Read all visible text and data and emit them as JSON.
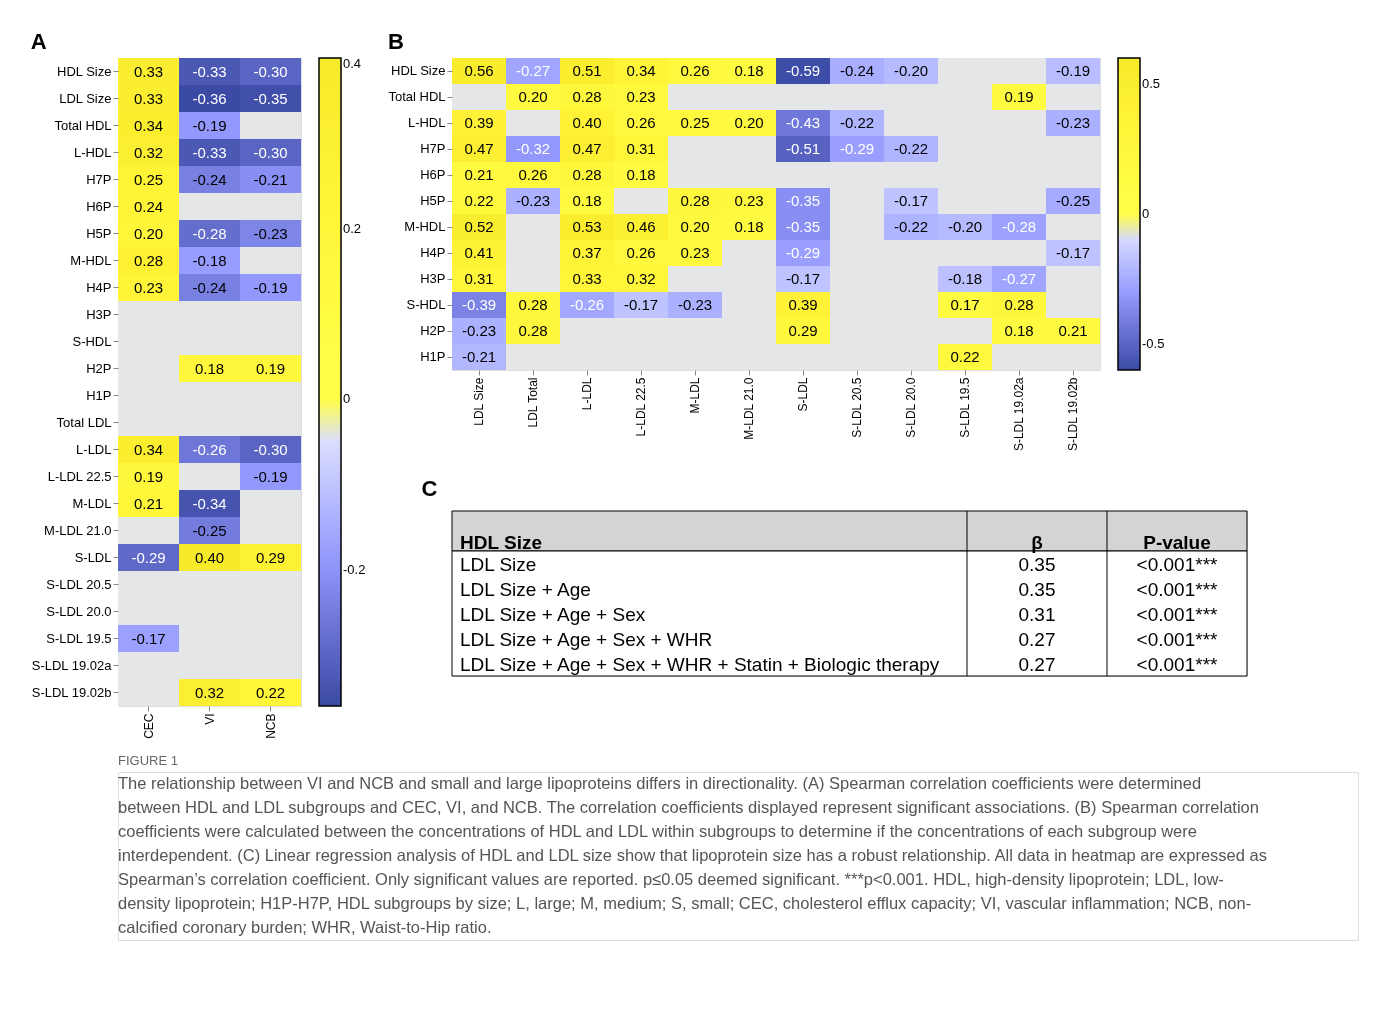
{
  "chart_data": [
    {
      "type": "heatmap",
      "title": "A",
      "clim": [
        -0.36,
        0.4
      ],
      "cticks": [
        -0.2,
        0,
        0.2,
        0.4
      ],
      "cell_labels": [
        [
          "0.33",
          "-0.33",
          "-0.30"
        ],
        [
          "0.33",
          "-0.36",
          "-0.35"
        ],
        [
          "0.34",
          "-0.19",
          null
        ],
        [
          "0.32",
          "-0.33",
          "-0.30"
        ],
        [
          "0.25",
          "-0.24",
          "-0.21"
        ],
        [
          "0.24",
          null,
          null
        ],
        [
          "0.20",
          "-0.28",
          "-0.23"
        ],
        [
          "0.28",
          "-0.18",
          null
        ],
        [
          "0.23",
          "-0.24",
          "-0.19"
        ],
        [
          null,
          null,
          null
        ],
        [
          null,
          null,
          null
        ],
        [
          null,
          "0.18",
          "0.19"
        ],
        [
          null,
          null,
          null
        ],
        [
          null,
          null,
          null
        ],
        [
          "0.34",
          "-0.26",
          "-0.30"
        ],
        [
          "0.19",
          null,
          "-0.19"
        ],
        [
          "0.21",
          "-0.34",
          null
        ],
        [
          null,
          "-0.25",
          null
        ],
        [
          "-0.29",
          "0.40",
          "0.29"
        ],
        [
          null,
          null,
          null
        ],
        [
          null,
          null,
          null
        ],
        [
          "-0.17",
          null,
          null
        ],
        [
          null,
          null,
          null
        ],
        [
          null,
          "0.32",
          "0.22"
        ]
      ],
      "categories": [
        "CEC",
        "VI",
        "NCB"
      ],
      "y_categories": [
        "HDL Size",
        "LDL Size",
        "Total HDL",
        "L-HDL",
        "H7P",
        "H6P",
        "H5P",
        "M-HDL",
        "H4P",
        "H3P",
        "S-HDL",
        "H2P",
        "H1P",
        "Total LDL",
        "L-LDL",
        "L-LDL 22.5",
        "M-LDL",
        "M-LDL 21.0",
        "S-LDL",
        "S-LDL 20.5",
        "S-LDL 20.0",
        "S-LDL 19.5",
        "S-LDL 19.02a",
        "S-LDL 19.02b"
      ],
      "cells": [
        [
          0.33,
          -0.33,
          -0.3
        ],
        [
          0.33,
          -0.36,
          -0.35
        ],
        [
          0.34,
          -0.19,
          null
        ],
        [
          0.32,
          -0.33,
          -0.3
        ],
        [
          0.25,
          -0.24,
          -0.21
        ],
        [
          0.24,
          null,
          null
        ],
        [
          0.2,
          -0.28,
          -0.23
        ],
        [
          0.28,
          -0.18,
          null
        ],
        [
          0.23,
          -0.24,
          -0.19
        ],
        [
          null,
          null,
          null
        ],
        [
          null,
          null,
          null
        ],
        [
          null,
          0.18,
          0.19
        ],
        [
          null,
          null,
          null
        ],
        [
          null,
          null,
          null
        ],
        [
          0.34,
          -0.26,
          -0.3
        ],
        [
          0.19,
          null,
          -0.19
        ],
        [
          0.21,
          -0.34,
          null
        ],
        [
          null,
          -0.25,
          null
        ],
        [
          -0.29,
          0.4,
          0.29
        ],
        [
          null,
          null,
          null
        ],
        [
          null,
          null,
          null
        ],
        [
          -0.17,
          null,
          null
        ],
        [
          null,
          null,
          null
        ],
        [
          null,
          0.32,
          0.22
        ]
      ]
    },
    {
      "type": "heatmap",
      "title": "B",
      "clim": [
        -0.6,
        0.6
      ],
      "cticks": [
        -0.5,
        0,
        0.5
      ],
      "cell_labels": [
        [
          "0.56",
          "-0.27",
          "0.51",
          "0.34",
          "0.26",
          "0.18",
          "-0.59",
          "-0.24",
          "-0.20",
          null,
          null,
          "-0.19"
        ],
        [
          null,
          "0.20",
          "0.28",
          "0.23",
          null,
          null,
          null,
          null,
          null,
          null,
          "0.19",
          null
        ],
        [
          "0.39",
          null,
          "0.40",
          "0.26",
          "0.25",
          "0.20",
          "-0.43",
          "-0.22",
          null,
          null,
          null,
          "-0.23"
        ],
        [
          "0.47",
          "-0.32",
          "0.47",
          "0.31",
          null,
          null,
          "-0.51",
          "-0.29",
          "-0.22",
          null,
          null,
          null
        ],
        [
          "0.21",
          "0.26",
          "0.28",
          "0.18",
          null,
          null,
          null,
          null,
          null,
          null,
          null,
          null
        ],
        [
          "0.22",
          "-0.23",
          "0.18",
          null,
          "0.28",
          "0.23",
          "-0.35",
          null,
          "-0.17",
          null,
          null,
          "-0.25"
        ],
        [
          "0.52",
          null,
          "0.53",
          "0.46",
          "0.20",
          "0.18",
          "-0.35",
          null,
          "-0.22",
          "-0.20",
          "-0.28",
          null
        ],
        [
          "0.41",
          null,
          "0.37",
          "0.26",
          "0.23",
          null,
          "-0.29",
          null,
          null,
          null,
          null,
          "-0.17"
        ],
        [
          "0.31",
          null,
          "0.33",
          "0.32",
          null,
          null,
          "-0.17",
          null,
          null,
          "-0.18",
          "-0.27",
          null
        ],
        [
          "-0.39",
          "0.28",
          "-0.26",
          "-0.17",
          "-0.23",
          null,
          "0.39",
          null,
          null,
          "0.17",
          "0.28",
          null
        ],
        [
          "-0.23",
          "0.28",
          null,
          null,
          null,
          null,
          "0.29",
          null,
          null,
          null,
          "0.18",
          "0.21"
        ],
        [
          "-0.21",
          null,
          null,
          null,
          null,
          null,
          null,
          null,
          null,
          "0.22",
          null,
          null
        ]
      ],
      "categories": [
        "LDL Size",
        "LDL Total",
        "L-LDL",
        "L-LDL 22.5",
        "M-LDL",
        "M-LDL 21.0",
        "S-LDL",
        "S-LDL 20.5",
        "S-LDL 20.0",
        "S-LDL 19.5",
        "S-LDL 19.02a",
        "S-LDL 19.02b"
      ],
      "y_categories": [
        "HDL Size",
        "Total HDL",
        "L-HDL",
        "H7P",
        "H6P",
        "H5P",
        "M-HDL",
        "H4P",
        "H3P",
        "S-HDL",
        "H2P",
        "H1P"
      ],
      "cells": [
        [
          0.56,
          -0.27,
          0.51,
          0.34,
          0.26,
          0.18,
          -0.59,
          -0.24,
          -0.2,
          null,
          null,
          -0.19
        ],
        [
          null,
          0.2,
          0.28,
          0.23,
          null,
          null,
          null,
          null,
          null,
          null,
          0.19,
          null
        ],
        [
          0.39,
          null,
          0.4,
          0.26,
          0.25,
          0.2,
          -0.43,
          -0.22,
          null,
          null,
          null,
          -0.23
        ],
        [
          0.47,
          -0.32,
          0.47,
          0.31,
          null,
          null,
          -0.51,
          -0.29,
          -0.22,
          null,
          null,
          null
        ],
        [
          0.21,
          0.26,
          0.28,
          0.18,
          null,
          null,
          null,
          null,
          null,
          null,
          null,
          null
        ],
        [
          0.22,
          -0.23,
          0.18,
          null,
          0.28,
          0.23,
          -0.35,
          null,
          -0.17,
          null,
          null,
          -0.25
        ],
        [
          0.52,
          null,
          0.53,
          0.46,
          0.2,
          0.18,
          -0.35,
          null,
          -0.22,
          -0.2,
          -0.28,
          null
        ],
        [
          0.41,
          null,
          0.37,
          0.26,
          0.23,
          null,
          -0.29,
          null,
          null,
          null,
          null,
          -0.17
        ],
        [
          0.31,
          null,
          0.33,
          0.32,
          null,
          null,
          -0.17,
          null,
          null,
          -0.18,
          -0.27,
          null
        ],
        [
          -0.39,
          0.28,
          -0.26,
          -0.17,
          -0.23,
          null,
          0.39,
          null,
          null,
          0.17,
          0.28,
          null
        ],
        [
          -0.23,
          0.28,
          null,
          null,
          null,
          null,
          0.29,
          null,
          null,
          null,
          0.18,
          0.21
        ],
        [
          -0.21,
          null,
          null,
          null,
          null,
          null,
          null,
          null,
          null,
          0.22,
          null,
          null
        ]
      ]
    },
    {
      "type": "other",
      "title": "C",
      "annotations": [
        "HDL Size",
        "β",
        "P-value",
        "LDL Size",
        "0.35",
        "<0.001***",
        "LDL Size + Age",
        "0.35",
        "<0.001***",
        "LDL Size + Age + Sex",
        "0.31",
        "<0.001***",
        "LDL Size + Age + Sex + WHR",
        "0.27",
        "<0.001***",
        "LDL Size + Age + Sex + WHR + Statin + Biologic therapy",
        "0.27",
        "<0.001***"
      ]
    },
    {
      "type": "other",
      "title": "FIGURE 1",
      "annotations": [
        "The relationship between VI and NCB and small and large lipoproteins differs in directionality. (A) Spearman correlation coefficients were determined",
        "between HDL and LDL subgroups and CEC, VI, and NCB. The correlation coefficients displayed represent significant associations. (B) Spearman correlation",
        "coefficients were calculated between the concentrations of HDL and LDL within subgroups to determine if the concentrations of each subgroup were",
        "interdependent. (C) Linear regression analysis of HDL and LDL size show that lipoprotein size has a robust relationship. All data in heatmap are expressed as",
        "Spearman’s correlation coefficient. Only significant values are reported. p≤0.05 deemed significant. ***p<0.001. HDL, high-density lipoprotein; LDL, low-",
        "density lipoprotein; H1P-H7P, HDL subgroups by size; L, large; M, medium; S, small; CEC, cholesterol efflux capacity; VI, vascular inflammation; NCB, non-",
        "calcified coronary burden; WHR, Waist-to-Hip ratio."
      ]
    }
  ]
}
